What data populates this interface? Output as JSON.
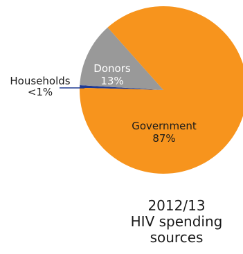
{
  "chart_data": {
    "type": "pie",
    "slices": [
      {
        "label": "Government",
        "value_label": "87%",
        "value": 87,
        "color": "#f7941d"
      },
      {
        "label": "Donors",
        "value_label": "13%",
        "value": 12.5,
        "color": "#999999"
      },
      {
        "label": "Households",
        "value_label": "<1%",
        "value": 0.5,
        "color": "#1f3a93"
      }
    ],
    "title_lines": [
      "2012/13",
      "HIV spending",
      "sources"
    ],
    "label_text_colors": {
      "Government": "#1a1a1a",
      "Donors": "#ffffff",
      "Households": "#1a1a1a"
    }
  }
}
